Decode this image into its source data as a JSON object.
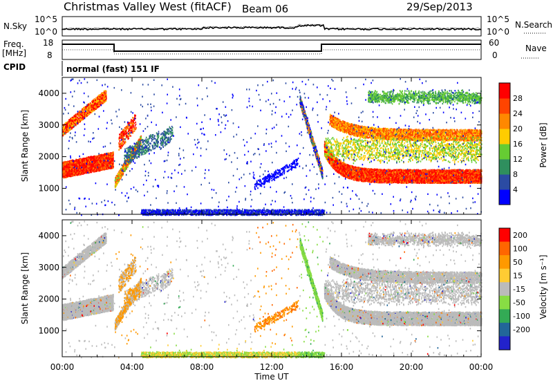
{
  "header": {
    "station": "Christmas Valley West (fitACF)",
    "beam": "Beam 06",
    "date": "29/Sep/2013"
  },
  "strips": {
    "nsky_label": "N.Sky",
    "nsearch_label": "N.Search",
    "nsky_ticks": [
      "10^5",
      "10^0"
    ],
    "freq_label_line1": "Freq.",
    "freq_label_line2": "[MHz]",
    "freq_ticks": [
      "18",
      "8"
    ],
    "nave_label": "Nave",
    "nave_ticks": [
      "60",
      "0"
    ],
    "cpid_label": "CPID",
    "cpid_text": "normal (fast) 151 IF"
  },
  "colors": {
    "power": [
      "#0000ff",
      "#2b4ba3",
      "#2f8f5e",
      "#66cc33",
      "#ffcc00",
      "#ff8800",
      "#ff4400",
      "#ff0000"
    ],
    "velocity": [
      "#ff0000",
      "#ff6600",
      "#ff9900",
      "#ffcc33",
      "#bbbbbb",
      "#88dd44",
      "#33aa55",
      "#226699",
      "#2222cc"
    ]
  },
  "chart_data": [
    {
      "type": "heatmap",
      "name": "power",
      "ylabel": "Slant Range [km]",
      "colorbar_label": "Power [dB]",
      "colorbar_ticks": [
        "28",
        "24",
        "20",
        "16",
        "12",
        "8",
        "4"
      ],
      "colorbar_range": [
        0,
        32
      ],
      "y_ticks": [
        "1000",
        "2000",
        "3000",
        "4000"
      ],
      "ylim": [
        180,
        4500
      ],
      "xlim": [
        0,
        24
      ]
    },
    {
      "type": "heatmap",
      "name": "velocity",
      "ylabel": "Slant Range [km]",
      "colorbar_label": "Velocity [m s⁻¹]",
      "colorbar_ticks": [
        "200",
        "100",
        "50",
        "15",
        "-15",
        "-50",
        "-100",
        "-200"
      ],
      "y_ticks": [
        "1000",
        "2000",
        "3000",
        "4000"
      ],
      "ylim": [
        180,
        4500
      ],
      "xlim": [
        0,
        24
      ]
    }
  ],
  "x_axis": {
    "label": "Time UT",
    "ticks": [
      "00:00",
      "04:00",
      "08:00",
      "12:00",
      "16:00",
      "20:00",
      "00:00"
    ]
  }
}
